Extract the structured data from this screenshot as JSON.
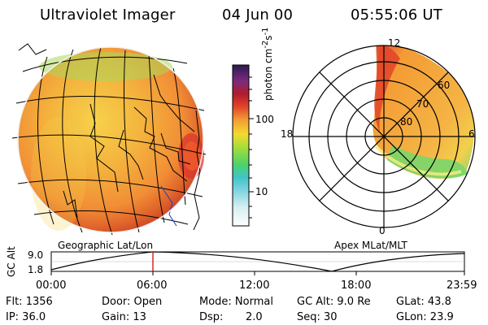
{
  "header": {
    "title": "Ultraviolet Imager",
    "date": "04 Jun 00",
    "time": "05:55:06 UT"
  },
  "colorbar": {
    "label": "photon cm",
    "label_sup_1": "-2",
    "label_mid": "s",
    "label_sup_2": "-1",
    "tick_100": "100",
    "tick_10": "10"
  },
  "left_panel": {
    "label": "Geographic Lat/Lon"
  },
  "right_panel": {
    "label": "Apex MLat/MLT",
    "mlt_labels": {
      "top": "12",
      "left": "18",
      "right": "6",
      "bottom": "0"
    },
    "mlat_labels": [
      "60",
      "70",
      "80"
    ]
  },
  "timeline": {
    "ylabel": "GC Alt",
    "y_top": "9.0",
    "y_bottom": "1.8",
    "ticks": [
      "00:00",
      "06:00",
      "12:00",
      "18:00",
      "23:59"
    ],
    "marker_time": "05:55:06"
  },
  "footer": {
    "flt": "Flt: 1356",
    "ip": "IP: 36.0",
    "door": "Door: Open",
    "gain": "Gain: 13",
    "mode": "Mode: Normal",
    "dsp_label": "Dsp:",
    "dsp_value": "2.0",
    "gcalt": "GC Alt: 9.0 Re",
    "seq": "Seq: 30",
    "glat": "GLat:  43.8",
    "glon": "GLon:  23.9"
  },
  "colors": {
    "orange": "#f2a23a",
    "yellow": "#f4c54a",
    "red": "#d8322b",
    "green": "#65d86e",
    "cyan": "#3cc9d6",
    "timeline_marker": "#d11b1b"
  },
  "icons": {
    "earth_limb": "earth-limb-icon",
    "aurora_ring": "aurora-ring-icon",
    "colorbar": "colorbar-icon"
  }
}
